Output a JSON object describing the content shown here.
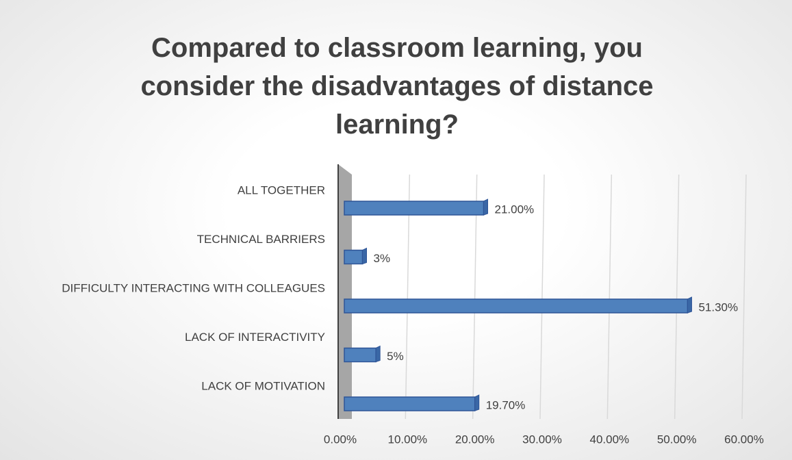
{
  "chart_data": {
    "type": "bar",
    "orientation": "horizontal",
    "title": "Compared to classroom learning, you consider the disadvantages of distance learning?",
    "categories": [
      "ALL TOGETHER",
      "TECHNICAL BARRIERS",
      "DIFFICULTY INTERACTING WITH COLLEAGUES",
      "LACK OF INTERACTIVITY",
      "LACK OF MOTIVATION"
    ],
    "values": [
      21,
      3,
      51.3,
      5,
      19.7
    ],
    "value_labels": [
      "21.00%",
      "3%",
      "51.30%",
      "5%",
      "19.70%"
    ],
    "color": "#4f81bd",
    "xlim": [
      0,
      60
    ],
    "xticks": [
      {
        "value": 0,
        "label": "0.00%"
      },
      {
        "value": 10,
        "label": "10.00%"
      },
      {
        "value": 20,
        "label": "20.00%"
      },
      {
        "value": 30,
        "label": "30.00%"
      },
      {
        "value": 40,
        "label": "40.00%"
      },
      {
        "value": 50,
        "label": "50.00%"
      },
      {
        "value": 60,
        "label": "60.00%"
      }
    ],
    "grid": true
  }
}
